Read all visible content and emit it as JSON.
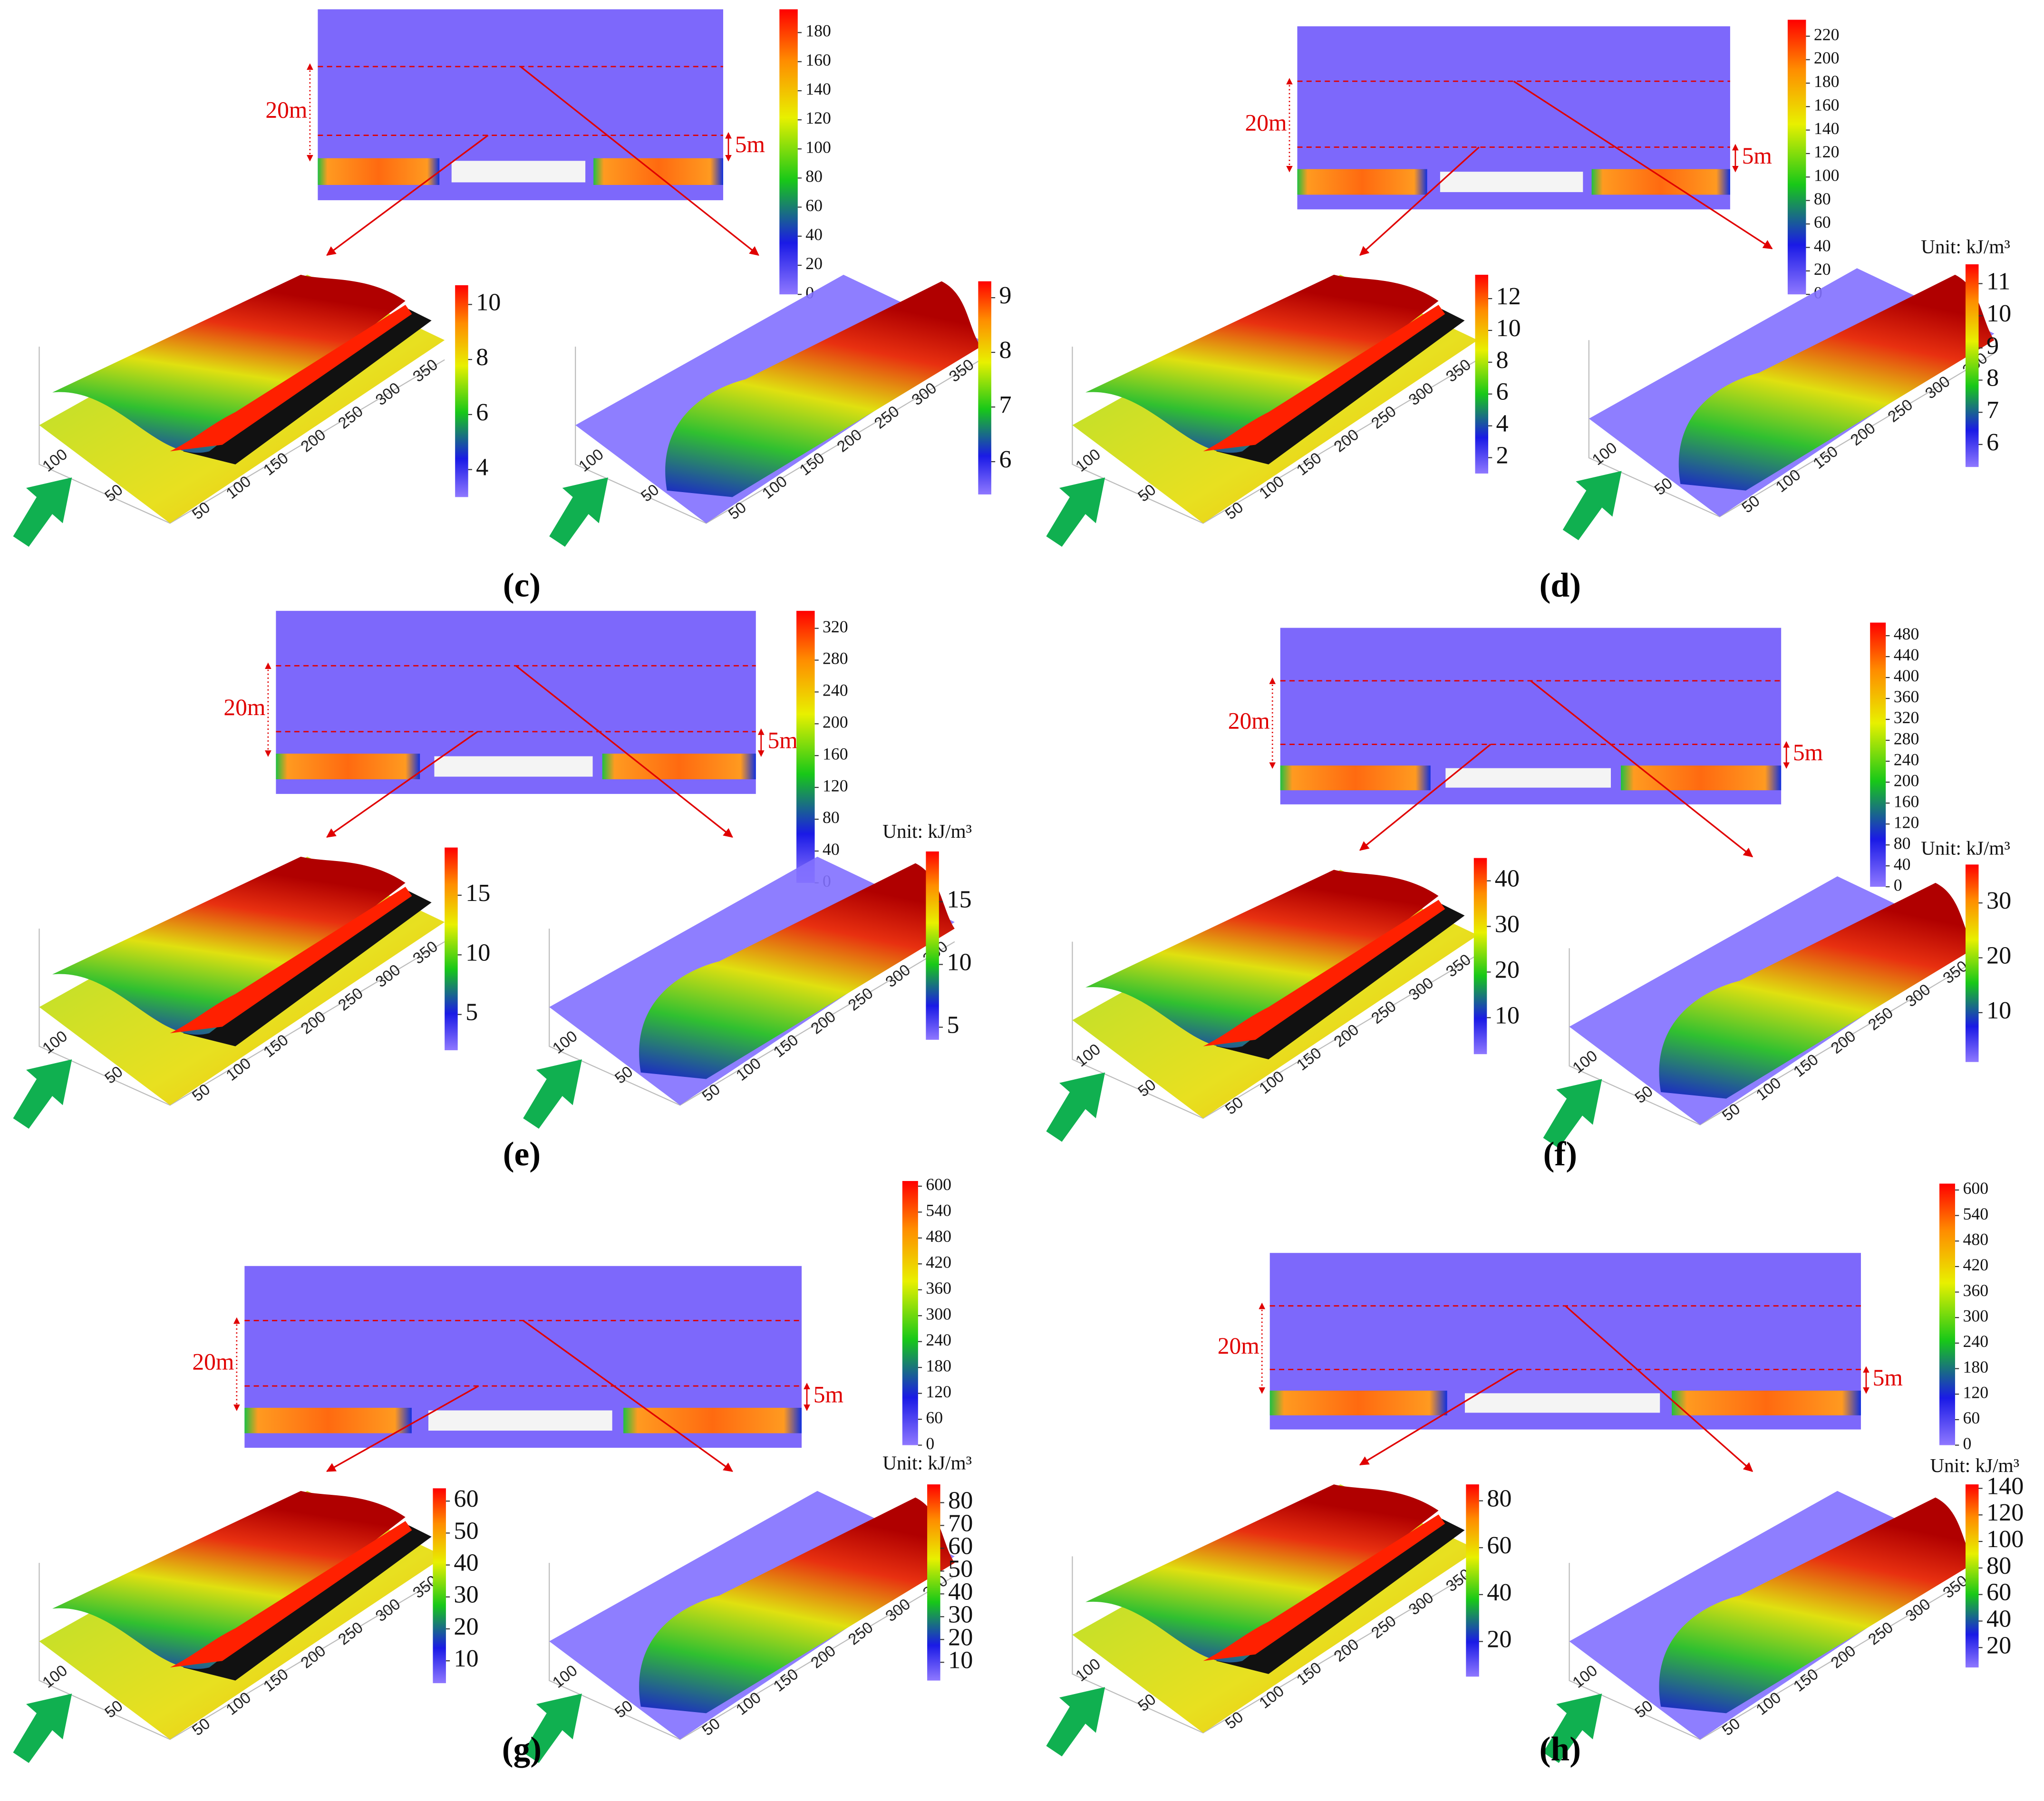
{
  "dimensions": {
    "outer": "20m",
    "inner": "5m"
  },
  "axis3d": {
    "short": [
      100,
      50
    ],
    "long": [
      50,
      100,
      150,
      200,
      250,
      300,
      350
    ]
  },
  "panels": [
    {
      "label": "(c)",
      "contour": {
        "range": [
          0,
          196
        ],
        "ticks": [
          0,
          20,
          40,
          60,
          80,
          100,
          120,
          140,
          160,
          180
        ]
      },
      "left": {
        "range": [
          3,
          10.7
        ],
        "ticks": [
          4,
          6,
          8,
          10
        ]
      },
      "right": {
        "range": [
          5.4,
          9.3
        ],
        "ticks": [
          6,
          7,
          8,
          9
        ]
      }
    },
    {
      "label": "(d)",
      "unit": "Unit: kJ/m³",
      "contour": {
        "range": [
          0,
          234
        ],
        "ticks": [
          0,
          20,
          40,
          60,
          80,
          100,
          120,
          140,
          160,
          180,
          200,
          220
        ]
      },
      "left": {
        "range": [
          1,
          13.5
        ],
        "ticks": [
          2,
          4,
          6,
          8,
          10,
          12
        ]
      },
      "right": {
        "range": [
          5.3,
          11.6
        ],
        "ticks": [
          6,
          7,
          8,
          9,
          10,
          11
        ]
      }
    },
    {
      "label": "(e)",
      "unit": "Unit: kJ/m³",
      "contour": {
        "range": [
          0,
          342
        ],
        "ticks": [
          0,
          40,
          80,
          120,
          160,
          200,
          240,
          280,
          320
        ]
      },
      "left": {
        "range": [
          2,
          19
        ],
        "ticks": [
          5,
          10,
          15
        ]
      },
      "right": {
        "range": [
          4,
          19
        ],
        "ticks": [
          5,
          10,
          15
        ]
      }
    },
    {
      "label": "(f)",
      "unit": "Unit: kJ/m³",
      "contour": {
        "range": [
          0,
          505
        ],
        "ticks": [
          0,
          40,
          80,
          120,
          160,
          200,
          240,
          280,
          320,
          360,
          400,
          440,
          480
        ]
      },
      "left": {
        "range": [
          2,
          45
        ],
        "ticks": [
          10,
          20,
          30,
          40
        ]
      },
      "right": {
        "range": [
          1,
          37
        ],
        "ticks": [
          10,
          20,
          30
        ]
      }
    },
    {
      "label": "(g)",
      "unit": "Unit: kJ/m³",
      "contour": {
        "range": [
          0,
          612
        ],
        "ticks": [
          0,
          60,
          120,
          180,
          240,
          300,
          360,
          420,
          480,
          540,
          600
        ]
      },
      "left": {
        "range": [
          3,
          64
        ],
        "ticks": [
          10,
          20,
          30,
          40,
          50,
          60
        ]
      },
      "right": {
        "range": [
          2,
          88
        ],
        "ticks": [
          10,
          20,
          30,
          40,
          50,
          60,
          70,
          80
        ]
      }
    },
    {
      "label": "(h)",
      "unit": "Unit: kJ/m³",
      "contour": {
        "range": [
          0,
          615
        ],
        "ticks": [
          0,
          60,
          120,
          180,
          240,
          300,
          360,
          420,
          480,
          540,
          600
        ]
      },
      "left": {
        "range": [
          5,
          87
        ],
        "ticks": [
          20,
          40,
          60,
          80
        ]
      },
      "right": {
        "range": [
          5,
          143
        ],
        "ticks": [
          20,
          40,
          60,
          80,
          100,
          120,
          140
        ]
      }
    }
  ]
}
